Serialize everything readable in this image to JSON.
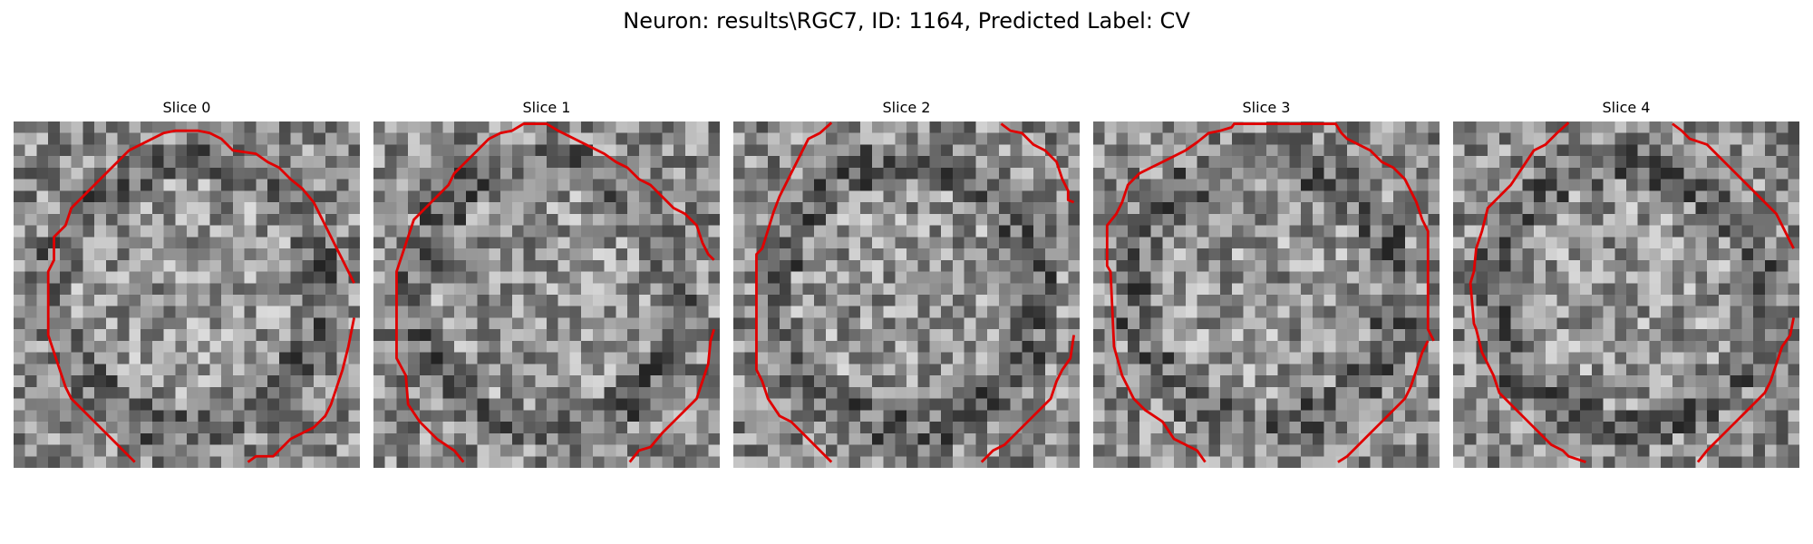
{
  "figure": {
    "title": "Neuron: results\\RGC7, ID: 1164, Predicted Label: CV",
    "contour_color": "#e00000",
    "background_color": "#ffffff",
    "colormap": "gray"
  },
  "slices": [
    {
      "label": "Slice 0"
    },
    {
      "label": "Slice 1"
    },
    {
      "label": "Slice 2"
    },
    {
      "label": "Slice 3"
    },
    {
      "label": "Slice 4"
    }
  ]
}
